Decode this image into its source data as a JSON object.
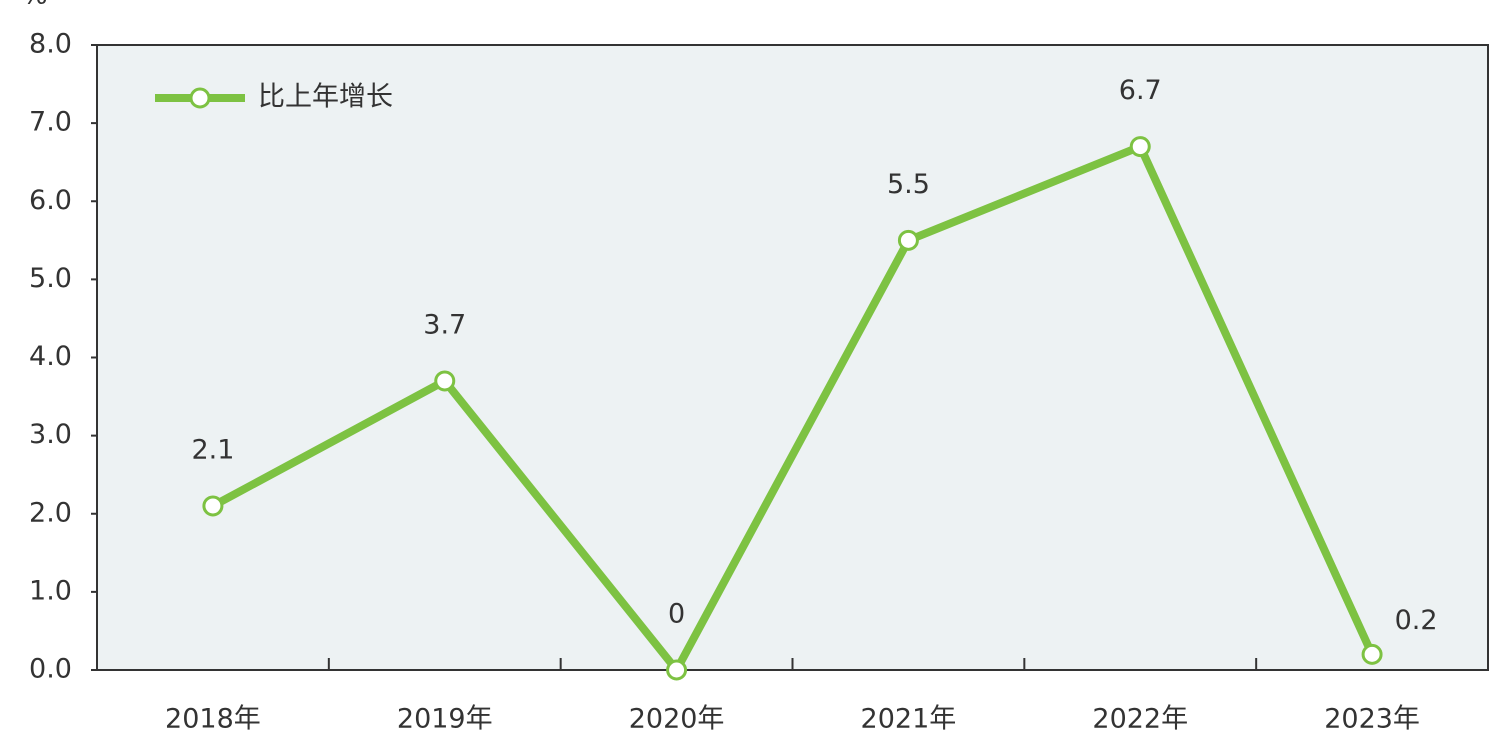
{
  "chart_data": {
    "type": "line",
    "y_label": "%",
    "categories": [
      "2018年",
      "2019年",
      "2020年",
      "2021年",
      "2022年",
      "2023年"
    ],
    "series": [
      {
        "name": "比上年增长",
        "color": "#7dc242",
        "values": [
          2.1,
          3.7,
          0,
          5.5,
          6.7,
          0.2
        ]
      }
    ],
    "ylim": [
      0,
      8
    ],
    "yticks": [
      {
        "value": 0,
        "label": "0.0"
      },
      {
        "value": 1,
        "label": "1.0"
      },
      {
        "value": 2,
        "label": "2.0"
      },
      {
        "value": 3,
        "label": "3.0"
      },
      {
        "value": 4,
        "label": "4.0"
      },
      {
        "value": 5,
        "label": "5.0"
      },
      {
        "value": 6,
        "label": "6.0"
      },
      {
        "value": 7,
        "label": "7.0"
      },
      {
        "value": 8,
        "label": "8.0"
      }
    ],
    "legend": "top-left"
  }
}
